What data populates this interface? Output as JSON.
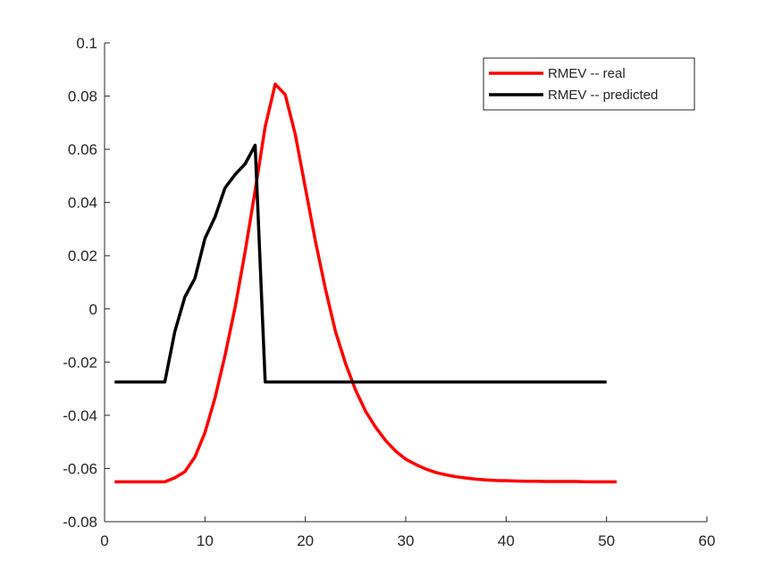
{
  "chart_data": {
    "type": "line",
    "title": "",
    "xlabel": "",
    "ylabel": "",
    "xlim": [
      0,
      60
    ],
    "ylim": [
      -0.08,
      0.1
    ],
    "xticks": [
      0,
      10,
      20,
      30,
      40,
      50,
      60
    ],
    "yticks": [
      -0.08,
      -0.06,
      -0.04,
      -0.02,
      0,
      0.02,
      0.04,
      0.06,
      0.08,
      0.1
    ],
    "xtick_labels": [
      "0",
      "10",
      "20",
      "30",
      "40",
      "50",
      "60"
    ],
    "ytick_labels": [
      "-0.08",
      "-0.06",
      "-0.04",
      "-0.02",
      "0",
      "0.02",
      "0.04",
      "0.06",
      "0.08",
      "0.1"
    ],
    "grid": false,
    "legend_position": "top-right",
    "series": [
      {
        "name": "RMEV -- real",
        "color": "#ff0000",
        "x": [
          1,
          2,
          3,
          4,
          5,
          6,
          7,
          8,
          9,
          10,
          11,
          12,
          13,
          14,
          15,
          16,
          17,
          18,
          19,
          20,
          21,
          22,
          23,
          24,
          25,
          26,
          27,
          28,
          29,
          30,
          31,
          32,
          33,
          34,
          35,
          36,
          37,
          38,
          39,
          40,
          41,
          42,
          43,
          44,
          45,
          46,
          47,
          48,
          49,
          50,
          51
        ],
        "y": [
          -0.065,
          -0.065,
          -0.065,
          -0.065,
          -0.065,
          -0.065,
          -0.0635,
          -0.0612,
          -0.0557,
          -0.0465,
          -0.0335,
          -0.0175,
          0.0005,
          0.0215,
          0.0445,
          0.0685,
          0.0845,
          0.0805,
          0.0655,
          0.0455,
          0.0255,
          0.0075,
          -0.0085,
          -0.0205,
          -0.0305,
          -0.0385,
          -0.0445,
          -0.0495,
          -0.0535,
          -0.0565,
          -0.0585,
          -0.0602,
          -0.0615,
          -0.0624,
          -0.0631,
          -0.0636,
          -0.064,
          -0.0643,
          -0.0645,
          -0.0646,
          -0.0647,
          -0.0648,
          -0.0648,
          -0.0649,
          -0.0649,
          -0.0649,
          -0.0649,
          -0.065,
          -0.065,
          -0.065,
          -0.065
        ]
      },
      {
        "name": "RMEV -- predicted",
        "color": "#000000",
        "x": [
          1,
          2,
          3,
          4,
          5,
          6,
          7,
          8,
          9,
          10,
          11,
          12,
          13,
          14,
          15,
          16,
          17,
          18,
          19,
          20,
          21,
          22,
          23,
          24,
          25,
          26,
          27,
          28,
          29,
          30,
          31,
          32,
          33,
          34,
          35,
          36,
          37,
          38,
          39,
          40,
          41,
          42,
          43,
          44,
          45,
          46,
          47,
          48,
          49,
          50
        ],
        "y": [
          -0.0275,
          -0.0275,
          -0.0275,
          -0.0275,
          -0.0275,
          -0.0275,
          -0.0085,
          0.0045,
          0.0115,
          0.0265,
          0.0345,
          0.0455,
          0.0505,
          0.0545,
          0.0615,
          -0.0275,
          -0.0275,
          -0.0275,
          -0.0275,
          -0.0275,
          -0.0275,
          -0.0275,
          -0.0275,
          -0.0275,
          -0.0275,
          -0.0275,
          -0.0275,
          -0.0275,
          -0.0275,
          -0.0275,
          -0.0275,
          -0.0275,
          -0.0275,
          -0.0275,
          -0.0275,
          -0.0275,
          -0.0275,
          -0.0275,
          -0.0275,
          -0.0275,
          -0.0275,
          -0.0275,
          -0.0275,
          -0.0275,
          -0.0275,
          -0.0275,
          -0.0275,
          -0.0275,
          -0.0275,
          -0.0275
        ]
      }
    ]
  }
}
